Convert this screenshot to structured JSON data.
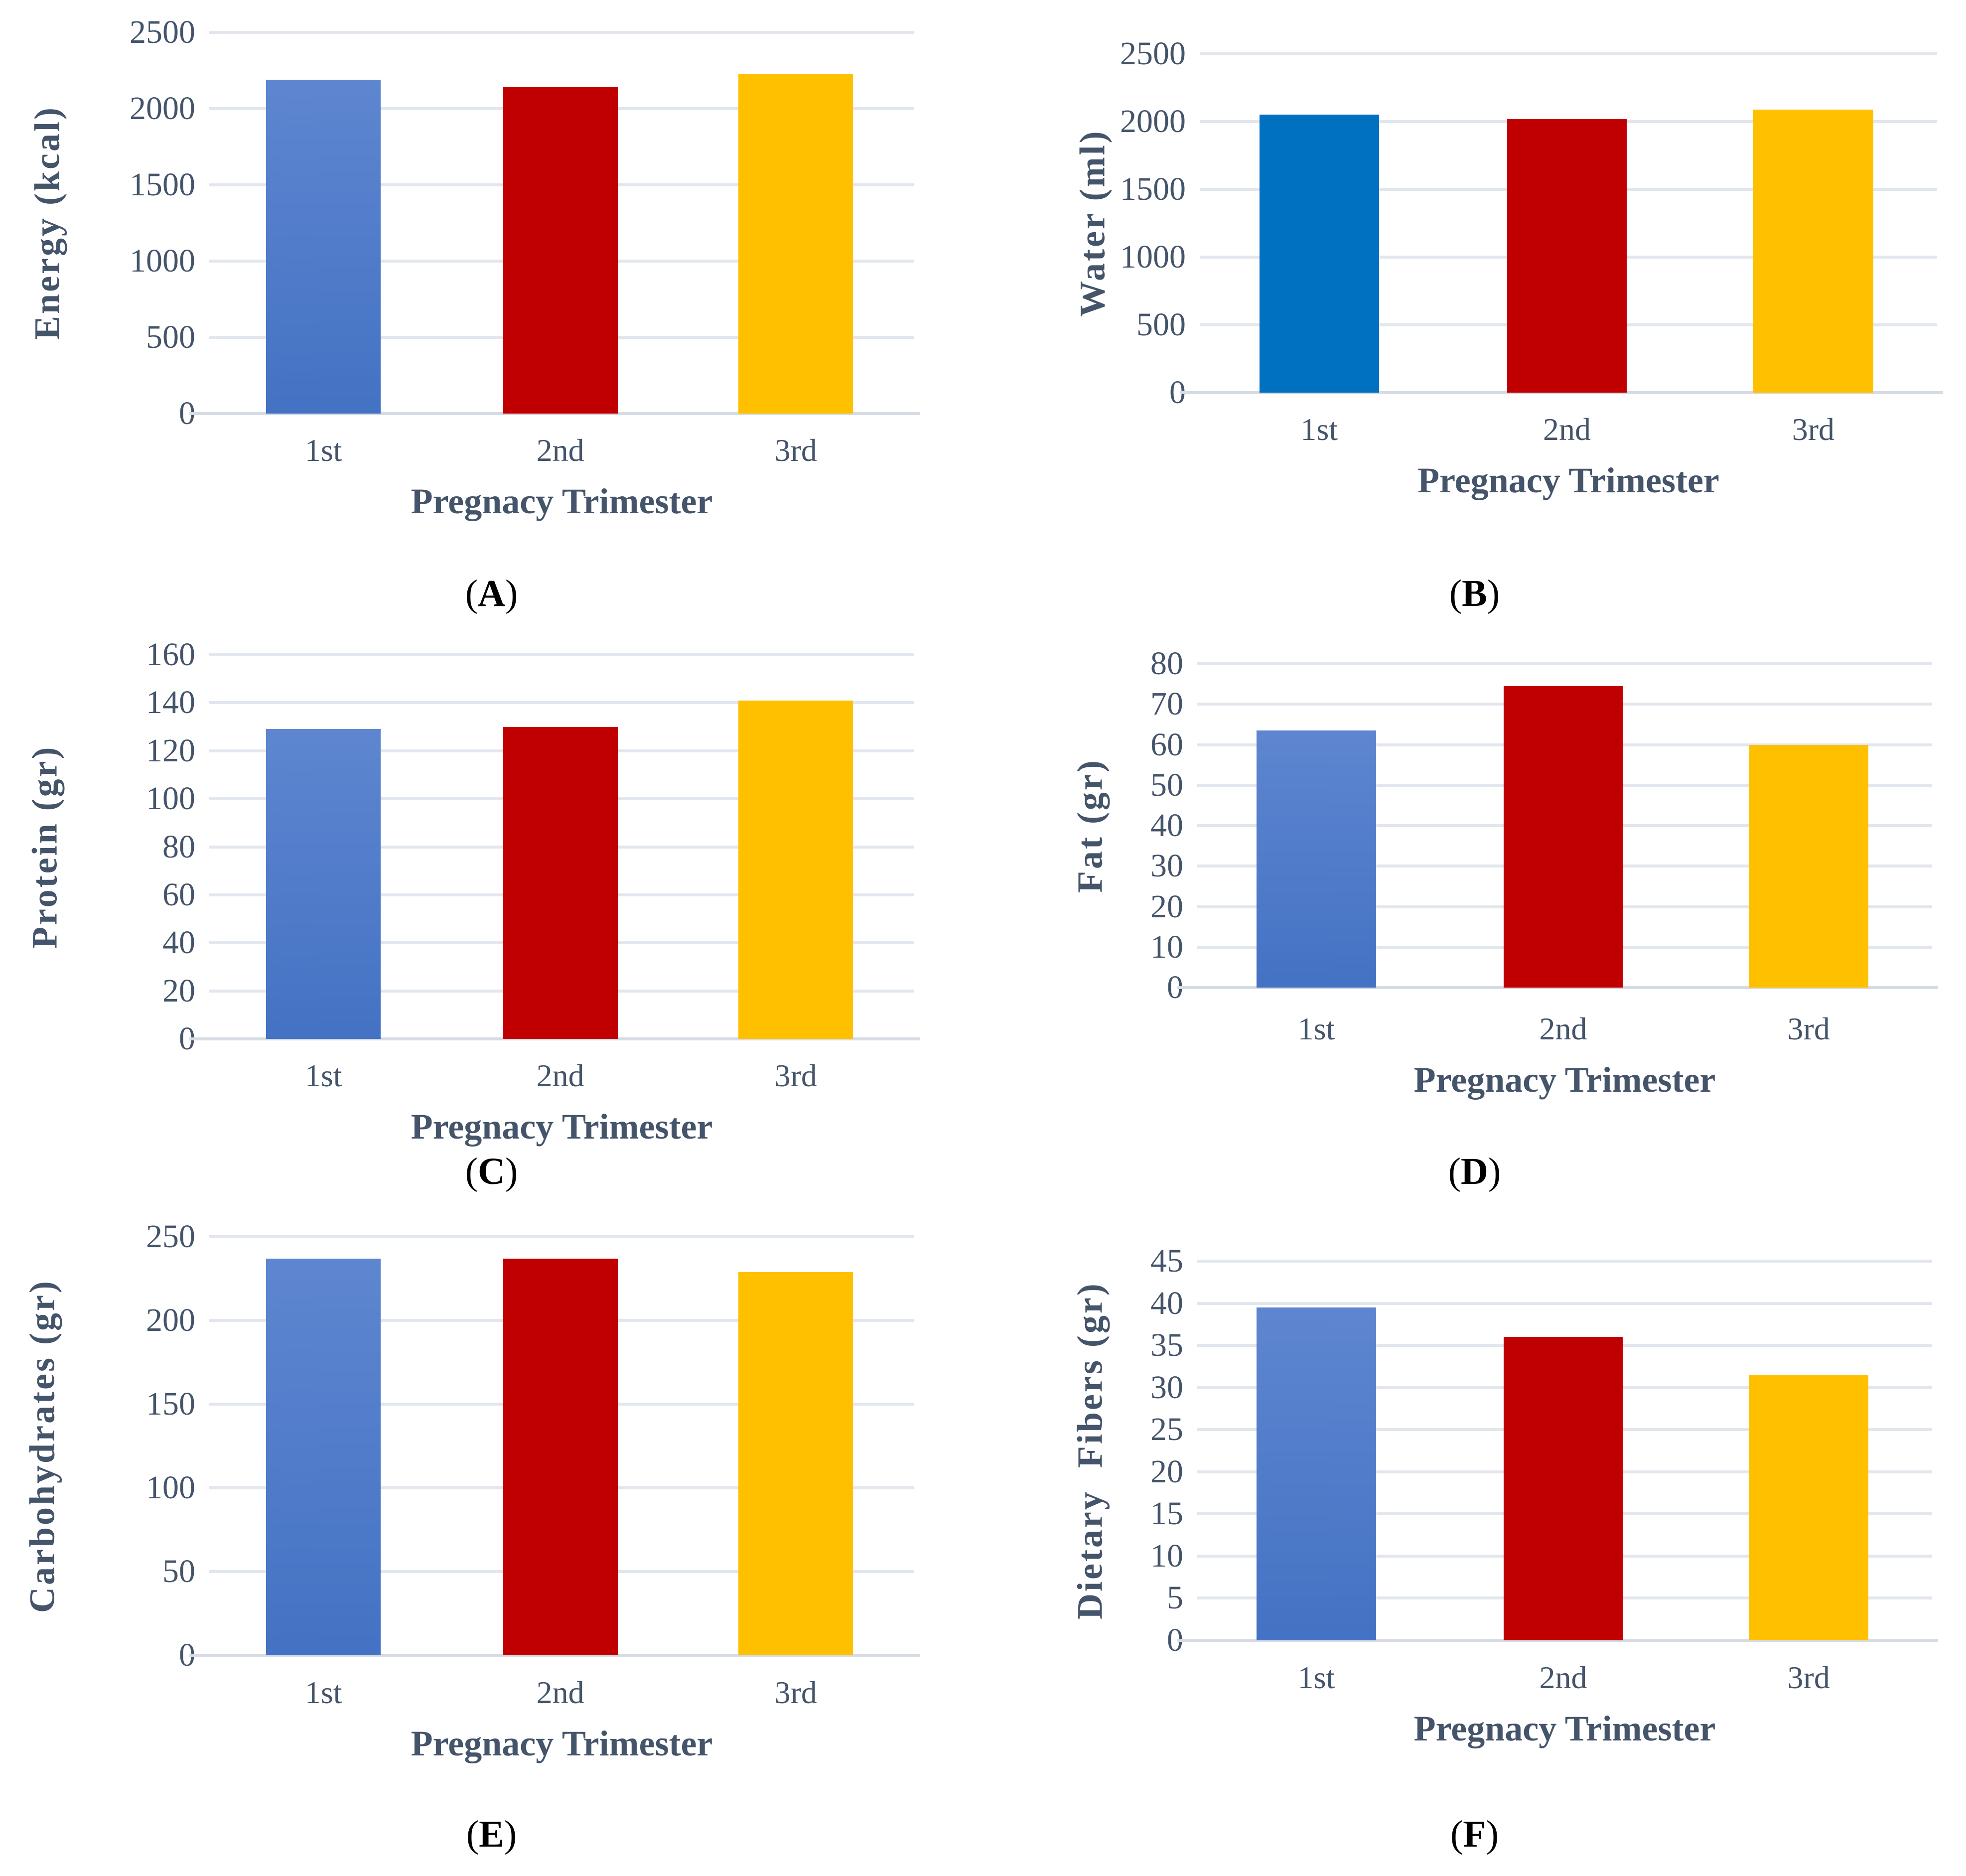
{
  "figure": {
    "background": "#FFFFFF",
    "x_axis_title": "Pregnacy Trimester",
    "categories": [
      "1st",
      "2nd",
      "3rd"
    ],
    "panel_paren_open": "(",
    "panel_paren_close": ")",
    "text_color": "#44546A",
    "gridline_color": "#E2E6ED",
    "axis_line_color": "#D6DBE4",
    "bar_colors": {
      "gradient_blue_top": "#5E86D0",
      "gradient_blue_bottom": "#4472C4",
      "solid_blue": "#0070C0",
      "dark_red": "#C00000",
      "gold": "#FFC000"
    }
  },
  "chart_data": [
    {
      "id": "A",
      "type": "bar",
      "panel_letter": "A",
      "ylabel": "Energy (kcal)",
      "xlabel": "Pregnacy Trimester",
      "categories": [
        "1st",
        "2nd",
        "3rd"
      ],
      "values": [
        2190,
        2140,
        2225
      ],
      "ylim": [
        0,
        2500
      ],
      "ytick_step": 500,
      "grid": true,
      "legend": "none",
      "bar_fills": [
        {
          "type": "gradient",
          "from": "#5E86D0",
          "to": "#4472C4"
        },
        {
          "type": "solid",
          "color": "#C00000"
        },
        {
          "type": "solid",
          "color": "#FFC000"
        }
      ]
    },
    {
      "id": "B",
      "type": "bar",
      "panel_letter": "B",
      "ylabel": "Water (ml)",
      "xlabel": "Pregnacy Trimester",
      "categories": [
        "1st",
        "2nd",
        "3rd"
      ],
      "values": [
        2050,
        2020,
        2090
      ],
      "ylim": [
        0,
        2500
      ],
      "ytick_step": 500,
      "grid": true,
      "legend": "none",
      "bar_fills": [
        {
          "type": "solid",
          "color": "#0070C0"
        },
        {
          "type": "solid",
          "color": "#C00000"
        },
        {
          "type": "solid",
          "color": "#FFC000"
        }
      ]
    },
    {
      "id": "C",
      "type": "bar",
      "panel_letter": "C",
      "ylabel": "Protein (gr)",
      "xlabel": "Pregnacy Trimester",
      "categories": [
        "1st",
        "2nd",
        "3rd"
      ],
      "values": [
        129,
        130,
        141
      ],
      "ylim": [
        0,
        160
      ],
      "ytick_step": 20,
      "grid": true,
      "legend": "none",
      "bar_fills": [
        {
          "type": "gradient",
          "from": "#5E86D0",
          "to": "#4472C4"
        },
        {
          "type": "solid",
          "color": "#C00000"
        },
        {
          "type": "solid",
          "color": "#FFC000"
        }
      ]
    },
    {
      "id": "D",
      "type": "bar",
      "panel_letter": "D",
      "ylabel": "Fat (gr)",
      "xlabel": "Pregnacy Trimester",
      "categories": [
        "1st",
        "2nd",
        "3rd"
      ],
      "values": [
        63.5,
        74.5,
        60
      ],
      "ylim": [
        0,
        80
      ],
      "ytick_step": 10,
      "grid": true,
      "legend": "none",
      "bar_fills": [
        {
          "type": "gradient",
          "from": "#5E86D0",
          "to": "#4472C4"
        },
        {
          "type": "solid",
          "color": "#C00000"
        },
        {
          "type": "solid",
          "color": "#FFC000"
        }
      ]
    },
    {
      "id": "E",
      "type": "bar",
      "panel_letter": "E",
      "ylabel": "Carbohydrates (gr)",
      "xlabel": "Pregnacy Trimester",
      "categories": [
        "1st",
        "2nd",
        "3rd"
      ],
      "values": [
        237,
        237,
        229
      ],
      "ylim": [
        0,
        250
      ],
      "ytick_step": 50,
      "grid": true,
      "legend": "none",
      "bar_fills": [
        {
          "type": "gradient",
          "from": "#5E86D0",
          "to": "#4472C4"
        },
        {
          "type": "solid",
          "color": "#C00000"
        },
        {
          "type": "solid",
          "color": "#FFC000"
        }
      ]
    },
    {
      "id": "F",
      "type": "bar",
      "panel_letter": "F",
      "ylabel": "Dietary  Fibers (gr)",
      "xlabel": "Pregnacy Trimester",
      "categories": [
        "1st",
        "2nd",
        "3rd"
      ],
      "values": [
        39.5,
        36,
        31.5
      ],
      "ylim": [
        0,
        45
      ],
      "ytick_step": 5,
      "grid": true,
      "legend": "none",
      "bar_fills": [
        {
          "type": "gradient",
          "from": "#5E86D0",
          "to": "#4472C4"
        },
        {
          "type": "solid",
          "color": "#C00000"
        },
        {
          "type": "solid",
          "color": "#FFC000"
        }
      ]
    }
  ]
}
